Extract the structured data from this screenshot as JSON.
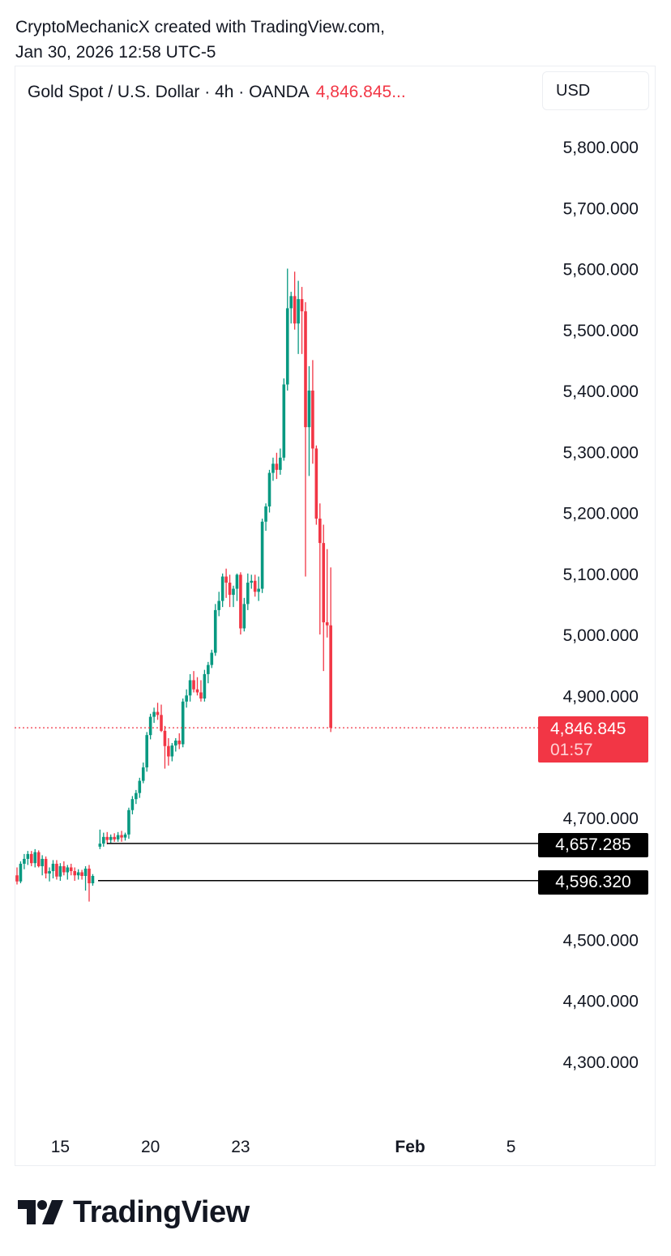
{
  "header": {
    "line1": "CryptoMechanicX created with TradingView.com,",
    "line2": "Jan 30, 2026 12:58 UTC-5"
  },
  "symbol": {
    "title": "Gold Spot / U.S. Dollar · 4h · OANDA",
    "price": "4,846.845..."
  },
  "currency": "USD",
  "current_price": {
    "value": "4,846.845",
    "countdown": "01:57"
  },
  "levels": [
    {
      "label": "4,657.285",
      "value": 4657.285
    },
    {
      "label": "4,596.320",
      "value": 4596.32
    }
  ],
  "colors": {
    "up": "#089981",
    "down": "#f23645",
    "level": "#000000",
    "price_line": "#f23645"
  },
  "logo": {
    "icon": "tradingview-logo-icon",
    "text": "TradingView"
  },
  "chart_data": {
    "type": "candlestick",
    "y_ticks": [
      {
        "label": "5,800.000",
        "value": 5800
      },
      {
        "label": "5,700.000",
        "value": 5700
      },
      {
        "label": "5,600.000",
        "value": 5600
      },
      {
        "label": "5,500.000",
        "value": 5500
      },
      {
        "label": "5,400.000",
        "value": 5400
      },
      {
        "label": "5,300.000",
        "value": 5300
      },
      {
        "label": "5,200.000",
        "value": 5200
      },
      {
        "label": "5,100.000",
        "value": 5100
      },
      {
        "label": "5,000.000",
        "value": 5000
      },
      {
        "label": "4,900.000",
        "value": 4900
      },
      {
        "label": "4,700.000",
        "value": 4700
      },
      {
        "label": "4,500.000",
        "value": 4500
      },
      {
        "label": "4,400.000",
        "value": 4400
      },
      {
        "label": "4,300.000",
        "value": 4300
      }
    ],
    "x_ticks": [
      {
        "label": "15",
        "bar": 12,
        "bold": false
      },
      {
        "label": "20",
        "bar": 37,
        "bold": false
      },
      {
        "label": "23",
        "bar": 62,
        "bold": false
      },
      {
        "label": "Feb",
        "bar": 109,
        "bold": true
      },
      {
        "label": "5",
        "bar": 137,
        "bold": false
      }
    ],
    "candles": [
      [
        4605,
        4618,
        4590,
        4595
      ],
      [
        4595,
        4628,
        4592,
        4624
      ],
      [
        4624,
        4640,
        4615,
        4632
      ],
      [
        4632,
        4645,
        4622,
        4640
      ],
      [
        4640,
        4645,
        4620,
        4625
      ],
      [
        4625,
        4648,
        4618,
        4643
      ],
      [
        4643,
        4646,
        4618,
        4620
      ],
      [
        4620,
        4638,
        4605,
        4632
      ],
      [
        4632,
        4636,
        4600,
        4608
      ],
      [
        4608,
        4618,
        4595,
        4612
      ],
      [
        4612,
        4630,
        4600,
        4624
      ],
      [
        4624,
        4630,
        4598,
        4603
      ],
      [
        4603,
        4625,
        4596,
        4620
      ],
      [
        4620,
        4628,
        4605,
        4610
      ],
      [
        4610,
        4622,
        4598,
        4618
      ],
      [
        4618,
        4624,
        4605,
        4612
      ],
      [
        4612,
        4618,
        4596,
        4605
      ],
      [
        4605,
        4615,
        4598,
        4610
      ],
      [
        4610,
        4614,
        4598,
        4604
      ],
      [
        4604,
        4620,
        4580,
        4616
      ],
      [
        4616,
        4622,
        4562,
        4592
      ],
      [
        4592,
        4607,
        4588,
        4604
      ],
      [
        4652,
        4680,
        4648,
        4657
      ],
      [
        4657,
        4675,
        4652,
        4668
      ],
      [
        4668,
        4676,
        4656,
        4663
      ],
      [
        4663,
        4672,
        4658,
        4668
      ],
      [
        4668,
        4674,
        4660,
        4664
      ],
      [
        4664,
        4676,
        4660,
        4671
      ],
      [
        4671,
        4678,
        4660,
        4667
      ],
      [
        4667,
        4675,
        4662,
        4672
      ],
      [
        4672,
        4716,
        4665,
        4712
      ],
      [
        4712,
        4735,
        4705,
        4730
      ],
      [
        4730,
        4745,
        4722,
        4740
      ],
      [
        4740,
        4765,
        4732,
        4760
      ],
      [
        4760,
        4790,
        4756,
        4782
      ],
      [
        4782,
        4840,
        4775,
        4835
      ],
      [
        4835,
        4870,
        4828,
        4865
      ],
      [
        4865,
        4880,
        4855,
        4873
      ],
      [
        4873,
        4888,
        4860,
        4868
      ],
      [
        4868,
        4885,
        4840,
        4842
      ],
      [
        4842,
        4850,
        4780,
        4817
      ],
      [
        4817,
        4830,
        4785,
        4800
      ],
      [
        4800,
        4822,
        4792,
        4818
      ],
      [
        4818,
        4830,
        4808,
        4826
      ],
      [
        4826,
        4838,
        4812,
        4820
      ],
      [
        4820,
        4895,
        4815,
        4890
      ],
      [
        4890,
        4910,
        4880,
        4900
      ],
      [
        4900,
        4935,
        4890,
        4925
      ],
      [
        4925,
        4940,
        4905,
        4910
      ],
      [
        4910,
        4930,
        4900,
        4905
      ],
      [
        4905,
        4925,
        4890,
        4895
      ],
      [
        4895,
        4942,
        4890,
        4935
      ],
      [
        4935,
        4955,
        4920,
        4950
      ],
      [
        4950,
        4975,
        4945,
        4970
      ],
      [
        4970,
        5050,
        4965,
        5040
      ],
      [
        5040,
        5070,
        5030,
        5055
      ],
      [
        5055,
        5100,
        5045,
        5095
      ],
      [
        5095,
        5108,
        5060,
        5085
      ],
      [
        5085,
        5098,
        5045,
        5065
      ],
      [
        5065,
        5080,
        5045,
        5075
      ],
      [
        5075,
        5100,
        5055,
        5098
      ],
      [
        5098,
        5102,
        5000,
        5010
      ],
      [
        5010,
        5060,
        5005,
        5050
      ],
      [
        5050,
        5100,
        5040,
        5085
      ],
      [
        5085,
        5098,
        5075,
        5088
      ],
      [
        5088,
        5098,
        5062,
        5070
      ],
      [
        5070,
        5095,
        5055,
        5075
      ],
      [
        5075,
        5190,
        5068,
        5185
      ],
      [
        5185,
        5215,
        5170,
        5210
      ],
      [
        5210,
        5270,
        5200,
        5265
      ],
      [
        5265,
        5290,
        5252,
        5280
      ],
      [
        5280,
        5298,
        5255,
        5270
      ],
      [
        5270,
        5305,
        5262,
        5290
      ],
      [
        5290,
        5420,
        5285,
        5410
      ],
      [
        5410,
        5600,
        5400,
        5535
      ],
      [
        5535,
        5562,
        5510,
        5555
      ],
      [
        5555,
        5595,
        5500,
        5510
      ],
      [
        5510,
        5580,
        5460,
        5550
      ],
      [
        5550,
        5570,
        5460,
        5530
      ],
      [
        5530,
        5545,
        5095,
        5340
      ],
      [
        5340,
        5440,
        5260,
        5400
      ],
      [
        5400,
        5450,
        5280,
        5305
      ],
      [
        5305,
        5310,
        5180,
        5190
      ],
      [
        5190,
        5215,
        5000,
        5150
      ],
      [
        5150,
        5180,
        4940,
        5020
      ],
      [
        5020,
        5140,
        4995,
        5015
      ],
      [
        5015,
        5110,
        4840,
        4847
      ]
    ],
    "series": [
      {
        "name": "Gold Spot / U.S. Dollar · 4h · OANDA"
      }
    ]
  }
}
